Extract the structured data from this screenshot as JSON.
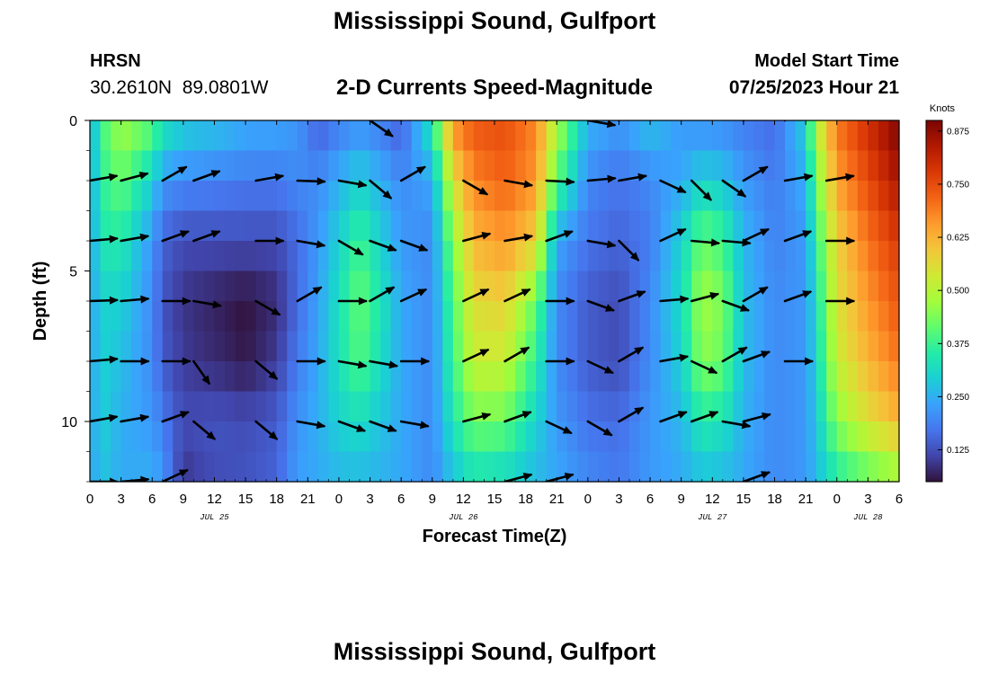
{
  "header": {
    "title": "Mississippi Sound, Gulfport",
    "station": "HRSN",
    "coords": "30.2610N  89.0801W",
    "subtitle": "2-D Currents Speed-Magnitude",
    "model_start_label": "Model Start Time",
    "model_start_value": "07/25/2023 Hour 21"
  },
  "footer": {
    "title": "Mississippi Sound, Gulfport"
  },
  "colors": {
    "scale": [
      "#30123b",
      "#4145ab",
      "#4675ed",
      "#39a2fc",
      "#1bcfd4",
      "#24eca6",
      "#61fc6c",
      "#a4fc3b",
      "#d1e834",
      "#f3c63a",
      "#fe9b2d",
      "#f36315",
      "#d93806",
      "#b11901",
      "#7a0402"
    ],
    "arrow": "#000000"
  },
  "chart_data": {
    "type": "heatmap",
    "xlabel": "Forecast Time(Z)",
    "ylabel": "Depth (ft)",
    "colorbar_label": "Knots",
    "colorbar_ticks": [
      "0.125",
      "0.250",
      "0.375",
      "0.500",
      "0.625",
      "0.750",
      "0.875"
    ],
    "colorbar_range": [
      0.05,
      0.9
    ],
    "x_range_hours": [
      0,
      78
    ],
    "x_tick_labels": [
      "0",
      "3",
      "6",
      "9",
      "12",
      "15",
      "18",
      "21",
      "0",
      "3",
      "6",
      "9",
      "12",
      "15",
      "18",
      "21",
      "0",
      "3",
      "6",
      "9",
      "12",
      "15",
      "18",
      "21",
      "0",
      "3",
      "6"
    ],
    "date_labels": [
      {
        "label": "JUL 25",
        "hour": 12
      },
      {
        "label": "JUL 26",
        "hour": 36
      },
      {
        "label": "JUL 27",
        "hour": 60
      },
      {
        "label": "JUL 28",
        "hour": 75
      }
    ],
    "y_range_ft": [
      0,
      12
    ],
    "y_ticks": [
      "0",
      "5",
      "10"
    ],
    "y_tick_values": [
      0,
      5,
      10
    ],
    "depths_ft": [
      0,
      2,
      4,
      6,
      8,
      10,
      12
    ],
    "vector_hours": [
      0,
      3,
      7,
      10,
      16,
      20,
      24,
      27,
      30,
      36,
      40,
      44,
      48,
      51,
      55,
      58,
      61,
      63,
      67,
      71,
      75
    ],
    "speed_knots_by_hour": [
      {
        "hour": 0,
        "speeds": [
          0.22,
          0.22,
          0.22,
          0.22,
          0.22,
          0.22,
          0.22
        ]
      },
      {
        "hour": 1,
        "speeds": [
          0.38,
          0.36,
          0.34,
          0.3,
          0.3,
          0.3,
          0.28
        ]
      },
      {
        "hour": 3,
        "speeds": [
          0.48,
          0.42,
          0.35,
          0.3,
          0.27,
          0.25,
          0.24
        ]
      },
      {
        "hour": 6,
        "speeds": [
          0.42,
          0.3,
          0.22,
          0.2,
          0.2,
          0.22,
          0.25
        ]
      },
      {
        "hour": 7,
        "speeds": [
          0.35,
          0.22,
          0.15,
          0.13,
          0.14,
          0.18,
          0.22
        ]
      },
      {
        "hour": 9,
        "speeds": [
          0.3,
          0.2,
          0.12,
          0.09,
          0.1,
          0.12,
          0.09
        ]
      },
      {
        "hour": 12,
        "speeds": [
          0.28,
          0.19,
          0.12,
          0.07,
          0.08,
          0.13,
          0.12
        ]
      },
      {
        "hour": 15,
        "speeds": [
          0.25,
          0.18,
          0.12,
          0.05,
          0.06,
          0.12,
          0.13
        ]
      },
      {
        "hour": 18,
        "speeds": [
          0.24,
          0.18,
          0.12,
          0.08,
          0.1,
          0.14,
          0.15
        ]
      },
      {
        "hour": 20,
        "speeds": [
          0.22,
          0.2,
          0.16,
          0.16,
          0.18,
          0.21,
          0.23
        ]
      },
      {
        "hour": 22,
        "speeds": [
          0.14,
          0.2,
          0.22,
          0.23,
          0.24,
          0.25,
          0.24
        ]
      },
      {
        "hour": 24,
        "speeds": [
          0.18,
          0.25,
          0.3,
          0.33,
          0.33,
          0.3,
          0.26
        ]
      },
      {
        "hour": 26,
        "speeds": [
          0.2,
          0.3,
          0.38,
          0.42,
          0.4,
          0.32,
          0.26
        ]
      },
      {
        "hour": 28,
        "speeds": [
          0.18,
          0.25,
          0.3,
          0.34,
          0.32,
          0.28,
          0.25
        ]
      },
      {
        "hour": 30,
        "speeds": [
          0.14,
          0.2,
          0.22,
          0.24,
          0.24,
          0.24,
          0.24
        ]
      },
      {
        "hour": 33,
        "speeds": [
          0.35,
          0.24,
          0.2,
          0.2,
          0.2,
          0.2,
          0.2
        ]
      },
      {
        "hour": 35,
        "speeds": [
          0.68,
          0.55,
          0.45,
          0.4,
          0.38,
          0.34,
          0.27
        ]
      },
      {
        "hour": 37,
        "speeds": [
          0.74,
          0.68,
          0.62,
          0.56,
          0.52,
          0.43,
          0.32
        ]
      },
      {
        "hour": 40,
        "speeds": [
          0.75,
          0.72,
          0.66,
          0.58,
          0.52,
          0.42,
          0.3
        ]
      },
      {
        "hour": 43,
        "speeds": [
          0.68,
          0.66,
          0.58,
          0.42,
          0.36,
          0.3,
          0.26
        ]
      },
      {
        "hour": 45,
        "speeds": [
          0.5,
          0.4,
          0.24,
          0.2,
          0.2,
          0.22,
          0.24
        ]
      },
      {
        "hour": 48,
        "speeds": [
          0.26,
          0.2,
          0.17,
          0.14,
          0.14,
          0.17,
          0.2
        ]
      },
      {
        "hour": 51,
        "speeds": [
          0.22,
          0.17,
          0.15,
          0.12,
          0.12,
          0.16,
          0.18
        ]
      },
      {
        "hour": 54,
        "speeds": [
          0.28,
          0.2,
          0.18,
          0.2,
          0.2,
          0.22,
          0.22
        ]
      },
      {
        "hour": 57,
        "speeds": [
          0.22,
          0.24,
          0.3,
          0.32,
          0.3,
          0.26,
          0.24
        ]
      },
      {
        "hour": 59,
        "speeds": [
          0.2,
          0.3,
          0.42,
          0.48,
          0.45,
          0.35,
          0.27
        ]
      },
      {
        "hour": 61,
        "speeds": [
          0.2,
          0.28,
          0.38,
          0.44,
          0.42,
          0.33,
          0.26
        ]
      },
      {
        "hour": 63,
        "speeds": [
          0.18,
          0.22,
          0.26,
          0.27,
          0.27,
          0.25,
          0.24
        ]
      },
      {
        "hour": 66,
        "speeds": [
          0.16,
          0.18,
          0.19,
          0.2,
          0.2,
          0.2,
          0.2
        ]
      },
      {
        "hour": 69,
        "speeds": [
          0.3,
          0.25,
          0.22,
          0.22,
          0.22,
          0.22,
          0.22
        ]
      },
      {
        "hour": 70,
        "speeds": [
          0.5,
          0.42,
          0.36,
          0.32,
          0.3,
          0.28,
          0.26
        ]
      },
      {
        "hour": 72,
        "speeds": [
          0.7,
          0.65,
          0.58,
          0.55,
          0.52,
          0.45,
          0.34
        ]
      },
      {
        "hour": 75,
        "speeds": [
          0.8,
          0.75,
          0.7,
          0.66,
          0.62,
          0.55,
          0.4
        ]
      },
      {
        "hour": 78,
        "speeds": [
          0.9,
          0.85,
          0.78,
          0.74,
          0.7,
          0.62,
          0.45
        ]
      }
    ],
    "vectors_deg_by_depth": [
      {
        "depth": 0,
        "dirs": [
          null,
          null,
          null,
          null,
          null,
          null,
          0,
          125,
          25,
          35,
          null,
          0,
          100,
          0,
          null,
          null,
          null,
          0,
          30,
          null,
          null
        ]
      },
      {
        "depth": 2,
        "dirs": [
          80,
          75,
          60,
          70,
          80,
          92,
          100,
          130,
          60,
          120,
          100,
          93,
          85,
          80,
          115,
          135,
          125,
          60,
          80,
          80,
          null
        ]
      },
      {
        "depth": 4,
        "dirs": [
          85,
          80,
          70,
          70,
          90,
          100,
          120,
          110,
          110,
          75,
          80,
          70,
          100,
          135,
          65,
          95,
          95,
          65,
          70,
          90,
          null
        ]
      },
      {
        "depth": 6,
        "dirs": [
          88,
          85,
          90,
          100,
          120,
          60,
          90,
          60,
          65,
          65,
          65,
          90,
          110,
          70,
          85,
          75,
          110,
          60,
          70,
          90,
          null
        ]
      },
      {
        "depth": 8,
        "dirs": [
          85,
          90,
          90,
          145,
          130,
          90,
          100,
          100,
          90,
          65,
          60,
          90,
          115,
          60,
          80,
          115,
          60,
          70,
          90,
          null,
          null
        ]
      },
      {
        "depth": 10,
        "dirs": [
          80,
          80,
          70,
          130,
          130,
          100,
          110,
          110,
          100,
          75,
          70,
          115,
          120,
          60,
          70,
          70,
          100,
          75,
          null,
          null,
          null
        ]
      },
      {
        "depth": 12,
        "dirs": [
          90,
          85,
          65,
          null,
          null,
          null,
          null,
          null,
          null,
          null,
          75,
          75,
          null,
          null,
          null,
          null,
          null,
          70,
          null,
          null,
          null
        ]
      }
    ]
  }
}
